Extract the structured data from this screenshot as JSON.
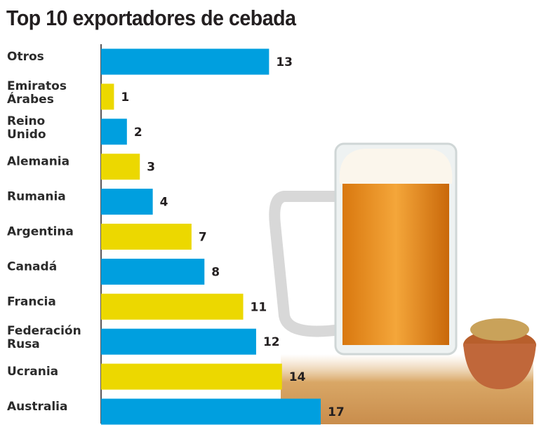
{
  "chart_data": {
    "type": "bar",
    "orientation": "horizontal",
    "title": "Top 10 exportadores de cebada",
    "categories": [
      "Otros",
      "Emiratos Árabes",
      "Reino Unido",
      "Alemania",
      "Rumania",
      "Argentina",
      "Canadá",
      "Francia",
      "Federación Rusa",
      "Ucrania",
      "Australia"
    ],
    "category_lines": [
      [
        "Otros"
      ],
      [
        "Emiratos",
        "Árabes"
      ],
      [
        "Reino",
        "Unido"
      ],
      [
        "Alemania"
      ],
      [
        "Rumania"
      ],
      [
        "Argentina"
      ],
      [
        "Canadá"
      ],
      [
        "Francia"
      ],
      [
        "Federación",
        "Rusa"
      ],
      [
        "Ucrania"
      ],
      [
        "Australia"
      ]
    ],
    "values": [
      13,
      1,
      2,
      3,
      4,
      7,
      8,
      11,
      12,
      14,
      17
    ],
    "bar_colors": [
      "#009fdf",
      "#ecd800",
      "#009fdf",
      "#ecd800",
      "#009fdf",
      "#ecd800",
      "#009fdf",
      "#ecd800",
      "#009fdf",
      "#ecd800",
      "#009fdf"
    ],
    "xlim": [
      0,
      17
    ],
    "grid": false,
    "data_labels": true,
    "xlabel": "",
    "ylabel": "",
    "background_image": "beer-mug-with-barley"
  }
}
